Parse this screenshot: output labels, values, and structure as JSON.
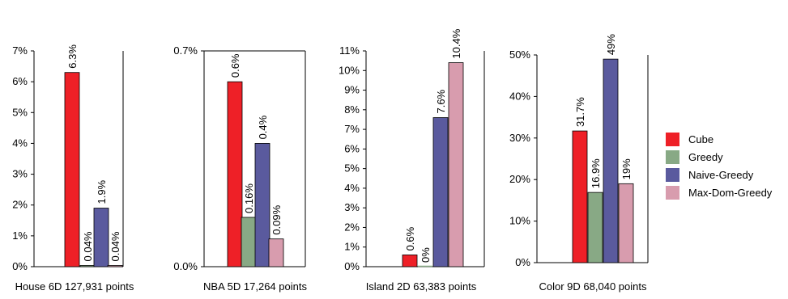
{
  "chart_data": [
    {
      "type": "bar",
      "xlabel": "House 6D 127,931 points",
      "ylim": [
        0,
        7
      ],
      "yticks": [
        0,
        1,
        2,
        3,
        4,
        5,
        6,
        7
      ],
      "tick_labels": [
        "0%",
        "1%",
        "2%",
        "3%",
        "4%",
        "5%",
        "6%",
        "7%"
      ],
      "values": [
        6.3,
        0.04,
        1.9,
        0.04
      ],
      "value_labels": [
        "6.3%",
        "0.04%",
        "1.9%",
        "0.04%"
      ]
    },
    {
      "type": "bar",
      "xlabel": "NBA 5D 17,264 points",
      "ylim": [
        0,
        0.7
      ],
      "yticks": [
        0,
        0.7
      ],
      "tick_labels": [
        "0.0%",
        "0.7%"
      ],
      "values": [
        0.6,
        0.16,
        0.4,
        0.09
      ],
      "value_labels": [
        "0.6%",
        "0.16%",
        "0.4%",
        "0.09%"
      ]
    },
    {
      "type": "bar",
      "xlabel": "Island 2D 63,383 points",
      "ylim": [
        0,
        11
      ],
      "yticks": [
        0,
        1,
        2,
        3,
        4,
        5,
        6,
        7,
        8,
        9,
        10,
        11
      ],
      "tick_labels": [
        "0%",
        "1%",
        "2%",
        "3%",
        "4%",
        "5%",
        "6%",
        "7%",
        "8%",
        "9%",
        "10%",
        "11%"
      ],
      "values": [
        0.6,
        0,
        7.6,
        10.4
      ],
      "value_labels": [
        "0.6%",
        "0%",
        "7.6%",
        "10.4%"
      ]
    },
    {
      "type": "bar",
      "xlabel": "Color 9D 68,040 points",
      "ylim": [
        0,
        50
      ],
      "yticks": [
        0,
        10,
        20,
        30,
        40,
        50
      ],
      "tick_labels": [
        "0%",
        "10%",
        "20%",
        "30%",
        "40%",
        "50%"
      ],
      "values": [
        31.7,
        16.9,
        49,
        19
      ],
      "value_labels": [
        "31.7%",
        "16.9%",
        "49%",
        "19%"
      ]
    }
  ],
  "legend": [
    {
      "name": "Cube",
      "color": "#ee2027"
    },
    {
      "name": "Greedy",
      "color": "#88a985"
    },
    {
      "name": "Naive-Greedy",
      "color": "#5a5a9e"
    },
    {
      "name": "Max-Dom-Greedy",
      "color": "#d89cae"
    }
  ],
  "legend_position": "right"
}
